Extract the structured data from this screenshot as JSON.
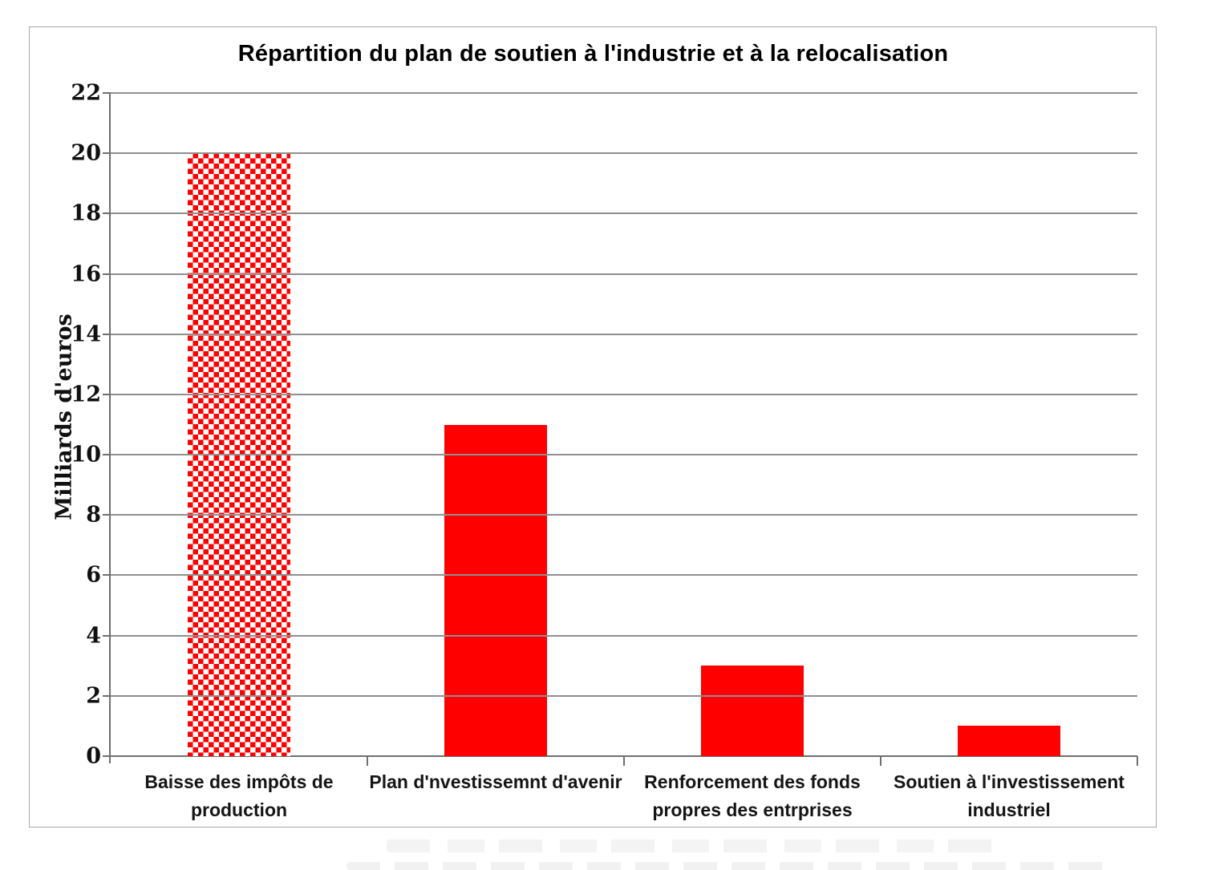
{
  "colors": {
    "bar_red": "#fe0000",
    "pattern_background": "#ffffff",
    "gridline": "#8f8f8f",
    "axis": "#6f6f6f",
    "figure_border": "#a8a8a8",
    "text": "#000000"
  },
  "chart_data": {
    "type": "bar",
    "title": "Répartition du plan de soutien à l'industrie et à la relocalisation",
    "categories": [
      "Baisse des impôts de production",
      "Plan d'nvestissemnt d'avenir",
      "Renforcement des fonds propres des entrprises",
      "Soutien à l'investissement industriel"
    ],
    "values": [
      20,
      11,
      3,
      1
    ],
    "xlabel": "",
    "ylabel": "Milliards d'euros",
    "ylim": [
      0,
      22
    ],
    "yticks": [
      0,
      2,
      4,
      6,
      8,
      10,
      12,
      14,
      16,
      18,
      20,
      22
    ],
    "grid": "horizontal",
    "legend_position": "none",
    "series_color": "#fe0000",
    "bar_fill_styles": [
      "red-white-checkerboard",
      "solid",
      "solid",
      "solid"
    ]
  }
}
